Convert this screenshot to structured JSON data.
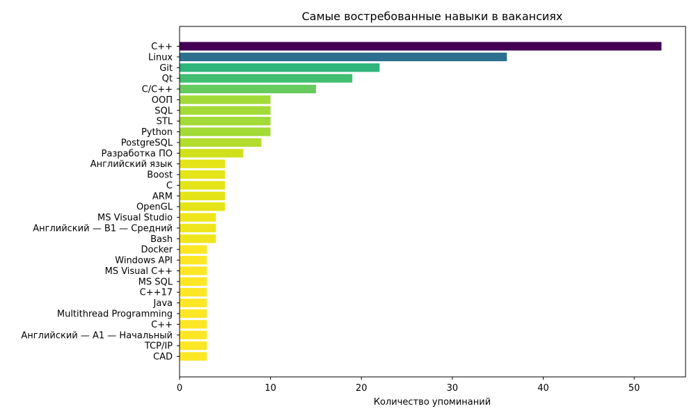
{
  "chart_data": {
    "type": "bar",
    "orientation": "horizontal",
    "title": "Самые востребованные навыки в вакансиях",
    "xlabel": "Количество упоминаний",
    "ylabel": "",
    "xlim": [
      0,
      55.65
    ],
    "xticks": [
      0,
      10,
      20,
      30,
      40,
      50
    ],
    "grid": false,
    "legend": "none",
    "colormap": "viridis-reversed",
    "categories": [
      "C++",
      "Linux",
      "Git",
      "Qt",
      "C/C++",
      "ООП",
      "SQL",
      "STL",
      "Python",
      "PostgreSQL",
      "Разработка ПО",
      "Английский язык",
      "Boost",
      "C",
      "ARM",
      "OpenGL",
      "MS Visual Studio",
      "Английский — B1 — Средний",
      "Bash",
      "Docker",
      "Windows API",
      "MS Visual C++",
      "MS SQL",
      "C++17",
      "Java",
      "Multithread Programming",
      "C++",
      "Английский — A1 — Начальный",
      "TCP/IP",
      "CAD"
    ],
    "values": [
      53,
      36,
      22,
      19,
      15,
      10,
      10,
      10,
      10,
      9,
      7,
      5,
      5,
      5,
      5,
      5,
      4,
      4,
      4,
      3,
      3,
      3,
      3,
      3,
      3,
      3,
      3,
      3,
      3,
      3
    ],
    "colors": [
      "#440154",
      "#2c6f8e",
      "#2fb47c",
      "#42be71",
      "#65cb5e",
      "#a2da37",
      "#a2da37",
      "#a2da37",
      "#a2da37",
      "#b2dd2d",
      "#d0e11c",
      "#e4e419",
      "#e4e419",
      "#e4e419",
      "#e4e419",
      "#e4e419",
      "#efe51c",
      "#efe51c",
      "#efe51c",
      "#fde725",
      "#fde725",
      "#fde725",
      "#fde725",
      "#fde725",
      "#fde725",
      "#fde725",
      "#fde725",
      "#fde725",
      "#fde725",
      "#fde725"
    ]
  }
}
